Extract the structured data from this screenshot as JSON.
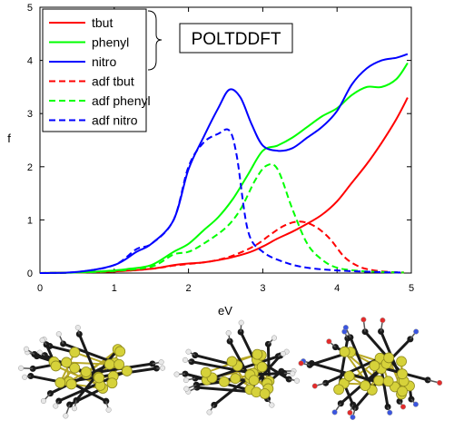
{
  "chart_data": {
    "type": "line",
    "xlabel": "eV",
    "ylabel": "f",
    "xlim": [
      0,
      5
    ],
    "ylim": [
      0,
      5
    ],
    "xticks": [
      0,
      1,
      2,
      3,
      4,
      5
    ],
    "yticks": [
      0,
      1,
      2,
      3,
      4,
      5
    ],
    "grid": false,
    "legend_position": "top-left",
    "annotation": "POLTDDFT",
    "series": [
      {
        "name": "tbut",
        "color": "#ff0000",
        "dash": false,
        "x": [
          0,
          0.5,
          1,
          1.5,
          1.8,
          2.0,
          2.2,
          2.5,
          2.8,
          3.0,
          3.2,
          3.4,
          3.6,
          3.8,
          4.0,
          4.2,
          4.4,
          4.6,
          4.8,
          4.95
        ],
        "y": [
          0,
          0.01,
          0.03,
          0.08,
          0.15,
          0.18,
          0.2,
          0.27,
          0.38,
          0.5,
          0.65,
          0.78,
          0.93,
          1.1,
          1.35,
          1.7,
          2.05,
          2.45,
          2.9,
          3.3
        ]
      },
      {
        "name": "phenyl",
        "color": "#00ff00",
        "dash": false,
        "x": [
          0,
          0.5,
          1,
          1.2,
          1.5,
          1.8,
          2.0,
          2.2,
          2.4,
          2.6,
          2.8,
          3.0,
          3.2,
          3.4,
          3.6,
          3.8,
          4.0,
          4.2,
          4.4,
          4.6,
          4.8,
          4.95
        ],
        "y": [
          0,
          0.01,
          0.05,
          0.08,
          0.15,
          0.4,
          0.55,
          0.8,
          1.05,
          1.4,
          1.85,
          2.3,
          2.4,
          2.55,
          2.75,
          2.95,
          3.1,
          3.35,
          3.5,
          3.5,
          3.65,
          3.95
        ]
      },
      {
        "name": "nitro",
        "color": "#0000ff",
        "dash": false,
        "x": [
          0,
          0.5,
          1,
          1.3,
          1.5,
          1.8,
          2.0,
          2.2,
          2.4,
          2.55,
          2.7,
          2.85,
          3.0,
          3.2,
          3.4,
          3.6,
          3.8,
          4.0,
          4.2,
          4.4,
          4.6,
          4.8,
          4.95
        ],
        "y": [
          0,
          0.02,
          0.15,
          0.4,
          0.55,
          1.0,
          1.95,
          2.55,
          3.1,
          3.45,
          3.3,
          2.8,
          2.4,
          2.3,
          2.35,
          2.55,
          2.75,
          3.05,
          3.55,
          3.85,
          4.0,
          4.05,
          4.12
        ]
      },
      {
        "name": "adf tbut",
        "color": "#ff0000",
        "dash": true,
        "x": [
          0,
          0.5,
          1,
          1.5,
          1.8,
          2.0,
          2.3,
          2.6,
          2.9,
          3.1,
          3.3,
          3.5,
          3.7,
          3.9,
          4.1,
          4.3,
          4.5,
          4.7,
          4.9
        ],
        "y": [
          0,
          0.01,
          0.03,
          0.08,
          0.14,
          0.17,
          0.22,
          0.33,
          0.52,
          0.72,
          0.9,
          0.97,
          0.88,
          0.65,
          0.3,
          0.12,
          0.05,
          0.02,
          0.01
        ]
      },
      {
        "name": "adf phenyl",
        "color": "#00ff00",
        "dash": true,
        "x": [
          0,
          0.5,
          1,
          1.5,
          1.8,
          2.0,
          2.2,
          2.5,
          2.7,
          2.9,
          3.05,
          3.2,
          3.4,
          3.6,
          3.8,
          4.0,
          4.3,
          4.6,
          4.9
        ],
        "y": [
          0,
          0.01,
          0.04,
          0.12,
          0.35,
          0.4,
          0.55,
          0.85,
          1.2,
          1.75,
          2.02,
          1.95,
          1.2,
          0.55,
          0.25,
          0.1,
          0.04,
          0.02,
          0.01
        ]
      },
      {
        "name": "adf nitro",
        "color": "#0000ff",
        "dash": true,
        "x": [
          0,
          0.5,
          1,
          1.3,
          1.5,
          1.8,
          2.0,
          2.2,
          2.4,
          2.55,
          2.65,
          2.8,
          3.0,
          3.3,
          3.6,
          4.0,
          4.5,
          4.9
        ],
        "y": [
          0,
          0.02,
          0.15,
          0.45,
          0.55,
          1.0,
          2.0,
          2.45,
          2.62,
          2.68,
          2.2,
          0.8,
          0.4,
          0.2,
          0.1,
          0.05,
          0.02,
          0.01
        ]
      }
    ]
  },
  "molecules": [
    {
      "name": "tbut",
      "atom_color": "#d6d23a",
      "ligand_color": "#1a1a1a"
    },
    {
      "name": "phenyl",
      "atom_color": "#d6d23a",
      "ligand_color": "#1a1a1a"
    },
    {
      "name": "nitro",
      "atom_color": "#d6d23a",
      "ligand_color": "#1a1a1a",
      "accent_colors": [
        "#e32b2b",
        "#3a55e0"
      ]
    }
  ]
}
